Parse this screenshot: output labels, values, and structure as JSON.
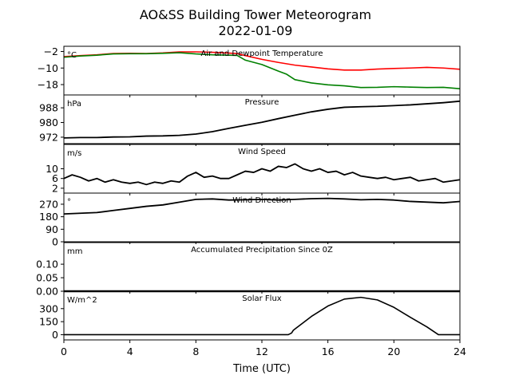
{
  "figure": {
    "title_line1": "AO&SS Building Tower Meteorogram",
    "title_line2": "2022-01-09",
    "xlabel": "Time (UTC)"
  },
  "chart_data": [
    {
      "type": "line",
      "title": "Air and Dewpoint Temperature",
      "unit_label": "°C",
      "xlim": [
        0,
        24
      ],
      "ylim": [
        -23,
        0.5
      ],
      "yticks": [
        -2,
        -10,
        -18
      ],
      "ytick_labels": [
        "−2",
        "−10",
        "−18"
      ],
      "series": [
        {
          "role": "air",
          "color": "#ff0000",
          "lw": 1.6,
          "x": [
            0,
            1,
            2,
            3,
            4,
            5,
            6,
            7,
            8,
            9,
            10,
            10.5,
            11,
            12,
            13,
            14,
            15,
            16,
            17,
            18,
            19,
            20,
            21,
            22,
            23,
            24
          ],
          "y": [
            -4.5,
            -4.0,
            -3.6,
            -3.0,
            -2.9,
            -3.0,
            -2.7,
            -2.2,
            -2.2,
            -2.4,
            -2.8,
            -3.0,
            -4.0,
            -5.8,
            -7.3,
            -8.6,
            -9.5,
            -10.4,
            -11.0,
            -11.0,
            -10.5,
            -10.2,
            -10.0,
            -9.7,
            -10.0,
            -10.6
          ]
        },
        {
          "role": "dewpoint",
          "color": "#008000",
          "lw": 1.6,
          "x": [
            0,
            1,
            2,
            3,
            4,
            5,
            6,
            7,
            8,
            9,
            10,
            10.5,
            11,
            12,
            13,
            13.5,
            14,
            15,
            16,
            17,
            18,
            19,
            20,
            21,
            22,
            23,
            24
          ],
          "y": [
            -4.8,
            -4.2,
            -3.8,
            -3.2,
            -3.1,
            -3.1,
            -2.9,
            -2.6,
            -3.2,
            -3.6,
            -3.8,
            -3.9,
            -6.2,
            -8.3,
            -11.5,
            -13.0,
            -15.6,
            -17.2,
            -18.1,
            -18.6,
            -19.4,
            -19.3,
            -19.0,
            -19.2,
            -19.4,
            -19.3,
            -20.0
          ]
        }
      ]
    },
    {
      "type": "line",
      "title": "Pressure",
      "unit_label": "hPa",
      "xlim": [
        0,
        24
      ],
      "ylim": [
        968.5,
        995
      ],
      "yticks": [
        972,
        980,
        988
      ],
      "ytick_labels": [
        "972",
        "980",
        "988"
      ],
      "series": [
        {
          "color": "#000000",
          "lw": 1.8,
          "x": [
            0,
            1,
            2,
            3,
            4,
            5,
            6,
            7,
            8,
            9,
            10,
            11,
            12,
            13,
            14,
            15,
            16,
            17,
            18,
            19,
            20,
            21,
            22,
            23,
            24
          ],
          "y": [
            971.6,
            971.8,
            971.8,
            972.1,
            972.2,
            972.6,
            972.7,
            973.0,
            973.7,
            975.0,
            976.8,
            978.5,
            980.1,
            982.1,
            984.0,
            985.8,
            987.2,
            988.3,
            988.6,
            988.8,
            989.2,
            989.6,
            990.2,
            990.8,
            991.6
          ]
        }
      ]
    },
    {
      "type": "line",
      "title": "Wind Speed",
      "unit_label": "m/s",
      "xlim": [
        0,
        24
      ],
      "ylim": [
        0,
        20
      ],
      "yticks": [
        2,
        6,
        10
      ],
      "ytick_labels": [
        "2",
        "6",
        "10"
      ],
      "series": [
        {
          "color": "#000000",
          "lw": 1.8,
          "x": [
            0,
            0.5,
            1,
            1.5,
            2,
            2.5,
            3,
            3.5,
            4,
            4.5,
            5,
            5.5,
            6,
            6.5,
            7,
            7.5,
            8,
            8.5,
            9,
            9.5,
            10,
            10.5,
            11,
            11.5,
            12,
            12.5,
            13,
            13.5,
            14,
            14.5,
            15,
            15.5,
            16,
            16.5,
            17,
            17.5,
            18,
            18.5,
            19,
            19.5,
            20,
            20.5,
            21,
            21.5,
            22,
            22.5,
            23,
            23.5,
            24
          ],
          "y": [
            6,
            7.5,
            6.5,
            5,
            6,
            4.5,
            5.5,
            4.5,
            4,
            4.5,
            3.5,
            4.5,
            4,
            5,
            4.5,
            7,
            8.5,
            6.5,
            7,
            6,
            6,
            7.5,
            9,
            8.5,
            10,
            9,
            11,
            10.5,
            12,
            10,
            9,
            10,
            8.5,
            9,
            7.5,
            8.5,
            7,
            6.5,
            6,
            6.5,
            5.5,
            6,
            6.5,
            5,
            5.5,
            6,
            4.5,
            5,
            5.5
          ]
        }
      ]
    },
    {
      "type": "line",
      "title": "Wind Direction",
      "unit_label": "°",
      "xlim": [
        0,
        24
      ],
      "ylim": [
        0,
        350
      ],
      "yticks": [
        0,
        90,
        180,
        270
      ],
      "ytick_labels": [
        "0",
        "90",
        "180",
        "270"
      ],
      "series": [
        {
          "color": "#000000",
          "lw": 1.8,
          "x": [
            0,
            1,
            2,
            3,
            4,
            5,
            6,
            7,
            8,
            9,
            10,
            11,
            12,
            13,
            14,
            15,
            16,
            17,
            18,
            19,
            20,
            21,
            22,
            23,
            24
          ],
          "y": [
            200,
            205,
            210,
            225,
            240,
            255,
            265,
            285,
            305,
            308,
            300,
            302,
            305,
            300,
            305,
            310,
            312,
            308,
            302,
            305,
            300,
            290,
            285,
            280,
            290
          ]
        }
      ]
    },
    {
      "type": "line",
      "title": "Accumulated Precipitation Since 0Z",
      "unit_label": "mm",
      "xlim": [
        0,
        24
      ],
      "ylim": [
        0,
        0.18
      ],
      "yticks": [
        0.0,
        0.05,
        0.1
      ],
      "ytick_labels": [
        "0.00",
        "0.05",
        "0.10"
      ],
      "series": [
        {
          "color": "#000000",
          "lw": 2.4,
          "x": [
            0,
            24
          ],
          "y": [
            0,
            0
          ]
        }
      ]
    },
    {
      "type": "line",
      "title": "Solar Flux",
      "unit_label": "W/m^2",
      "xlim": [
        0,
        24
      ],
      "ylim": [
        -60,
        500
      ],
      "yticks": [
        0,
        150,
        300
      ],
      "ytick_labels": [
        "0",
        "150",
        "300"
      ],
      "series": [
        {
          "color": "#000000",
          "lw": 1.6,
          "x": [
            0,
            13.6,
            13.8,
            13.9,
            14,
            15,
            16,
            17,
            18,
            19,
            20,
            21,
            22,
            22.7,
            24
          ],
          "y": [
            0,
            0,
            20,
            50,
            65,
            210,
            330,
            410,
            430,
            400,
            315,
            200,
            90,
            0,
            0
          ]
        }
      ]
    }
  ],
  "xaxis": {
    "ticks": [
      0,
      4,
      8,
      12,
      16,
      20,
      24
    ],
    "tick_labels": [
      "0",
      "4",
      "8",
      "12",
      "16",
      "20",
      "24"
    ]
  }
}
